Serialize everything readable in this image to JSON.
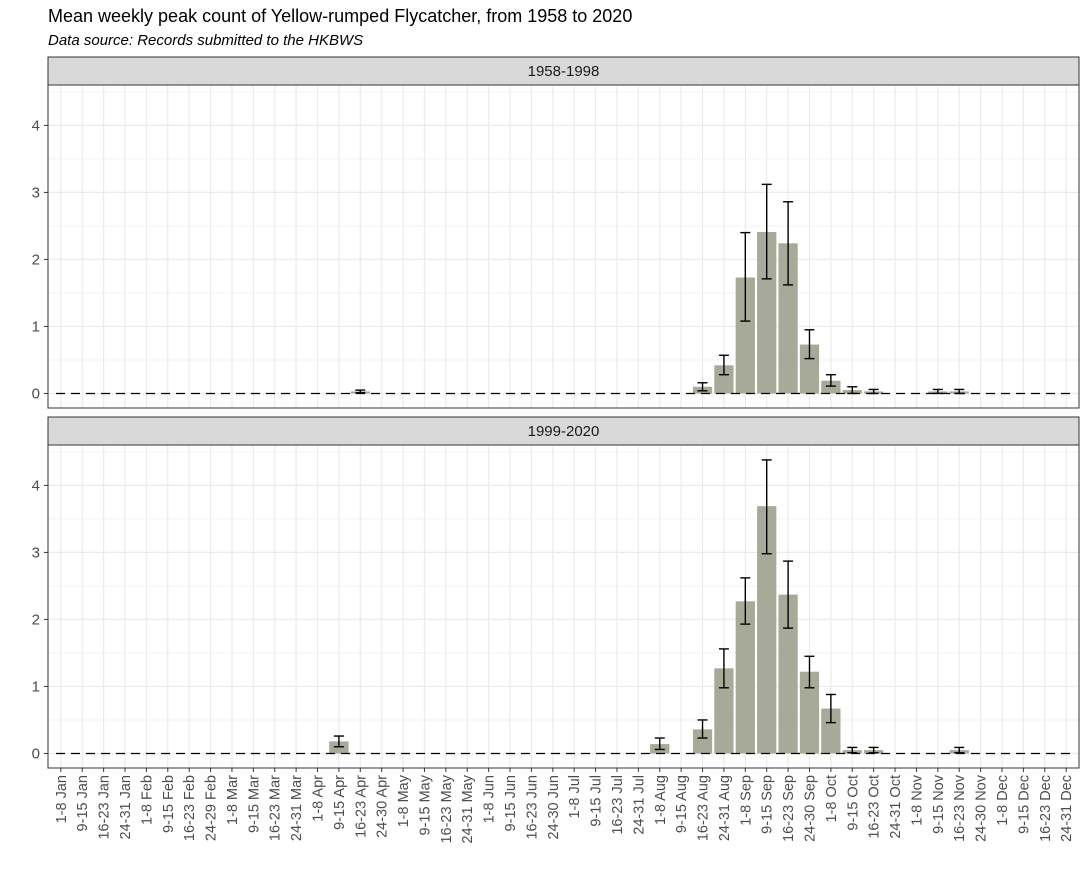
{
  "title": "Mean weekly peak count of Yellow-rumped Flycatcher, from 1958 to 2020",
  "subtitle": "Data source: Records submitted to the HKBWS",
  "colors": {
    "bar": "#a7a999",
    "strip": "#d9d9d9",
    "grid": "#ebebeb",
    "error": "#000000"
  },
  "chart_data": {
    "type": "bar",
    "categories": [
      "1-8 Jan",
      "9-15 Jan",
      "16-23 Jan",
      "24-31 Jan",
      "1-8 Feb",
      "9-15 Feb",
      "16-23 Feb",
      "24-29 Feb",
      "1-8 Mar",
      "9-15 Mar",
      "16-23 Mar",
      "24-31 Mar",
      "1-8 Apr",
      "9-15 Apr",
      "16-23 Apr",
      "24-30 Apr",
      "1-8 May",
      "9-15 May",
      "16-23 May",
      "24-31 May",
      "1-8 Jun",
      "9-15 Jun",
      "16-23 Jun",
      "24-30 Jun",
      "1-8 Jul",
      "9-15 Jul",
      "16-23 Jul",
      "24-31 Jul",
      "1-8 Aug",
      "9-15 Aug",
      "16-23 Aug",
      "24-31 Aug",
      "1-8 Sep",
      "9-15 Sep",
      "16-23 Sep",
      "24-30 Sep",
      "1-8 Oct",
      "9-15 Oct",
      "16-23 Oct",
      "24-31 Oct",
      "1-8 Nov",
      "9-15 Nov",
      "16-23 Nov",
      "24-30 Nov",
      "1-8 Dec",
      "9-15 Dec",
      "16-23 Dec",
      "24-31 Dec"
    ],
    "ylim": [
      0,
      4.5
    ],
    "yticks": [
      0,
      1,
      2,
      3,
      4
    ],
    "grid": true,
    "reference_line": {
      "y": 0,
      "style": "dashed"
    },
    "panels": [
      {
        "name": "1958-1998",
        "values": [
          0,
          0,
          0,
          0,
          0,
          0,
          0,
          0,
          0,
          0,
          0,
          0,
          0,
          0,
          0.03,
          0,
          0,
          0,
          0,
          0,
          0,
          0,
          0,
          0,
          0,
          0,
          0,
          0,
          0,
          0,
          0.1,
          0.42,
          1.73,
          2.41,
          2.24,
          0.73,
          0.19,
          0.05,
          0.03,
          0,
          0,
          0.03,
          0.03,
          0,
          0,
          0,
          0,
          0
        ],
        "error_low": [
          0,
          0,
          0,
          0,
          0,
          0,
          0,
          0,
          0,
          0,
          0,
          0,
          0,
          0,
          0.01,
          0,
          0,
          0,
          0,
          0,
          0,
          0,
          0,
          0,
          0,
          0,
          0,
          0,
          0,
          0,
          0.04,
          0.28,
          1.08,
          1.71,
          1.62,
          0.52,
          0.11,
          0.0,
          0.0,
          0,
          0,
          0.0,
          0.0,
          0,
          0,
          0,
          0,
          0
        ],
        "error_high": [
          0,
          0,
          0,
          0,
          0,
          0,
          0,
          0,
          0,
          0,
          0,
          0,
          0,
          0,
          0.05,
          0,
          0,
          0,
          0,
          0,
          0,
          0,
          0,
          0,
          0,
          0,
          0,
          0,
          0,
          0,
          0.16,
          0.57,
          2.4,
          3.12,
          2.86,
          0.95,
          0.28,
          0.1,
          0.06,
          0,
          0,
          0.06,
          0.06,
          0,
          0,
          0,
          0,
          0
        ]
      },
      {
        "name": "1999-2020",
        "values": [
          0,
          0,
          0,
          0,
          0,
          0,
          0,
          0,
          0,
          0,
          0,
          0,
          0,
          0.18,
          0,
          0,
          0,
          0,
          0,
          0,
          0,
          0,
          0,
          0,
          0,
          0,
          0,
          0,
          0.14,
          0,
          0.36,
          1.27,
          2.27,
          3.69,
          2.37,
          1.22,
          0.67,
          0.05,
          0.05,
          0,
          0,
          0,
          0.05,
          0,
          0,
          0,
          0,
          0
        ],
        "error_low": [
          0,
          0,
          0,
          0,
          0,
          0,
          0,
          0,
          0,
          0,
          0,
          0,
          0,
          0.1,
          0,
          0,
          0,
          0,
          0,
          0,
          0,
          0,
          0,
          0,
          0,
          0,
          0,
          0,
          0.06,
          0,
          0.23,
          0.98,
          1.93,
          2.98,
          1.87,
          0.98,
          0.46,
          0.01,
          0.01,
          0,
          0,
          0,
          0.01,
          0,
          0,
          0,
          0,
          0
        ],
        "error_high": [
          0,
          0,
          0,
          0,
          0,
          0,
          0,
          0,
          0,
          0,
          0,
          0,
          0,
          0.26,
          0,
          0,
          0,
          0,
          0,
          0,
          0,
          0,
          0,
          0,
          0,
          0,
          0,
          0,
          0.23,
          0,
          0.5,
          1.56,
          2.62,
          4.38,
          2.87,
          1.45,
          0.88,
          0.09,
          0.09,
          0,
          0,
          0,
          0.09,
          0,
          0,
          0,
          0,
          0
        ]
      }
    ]
  }
}
